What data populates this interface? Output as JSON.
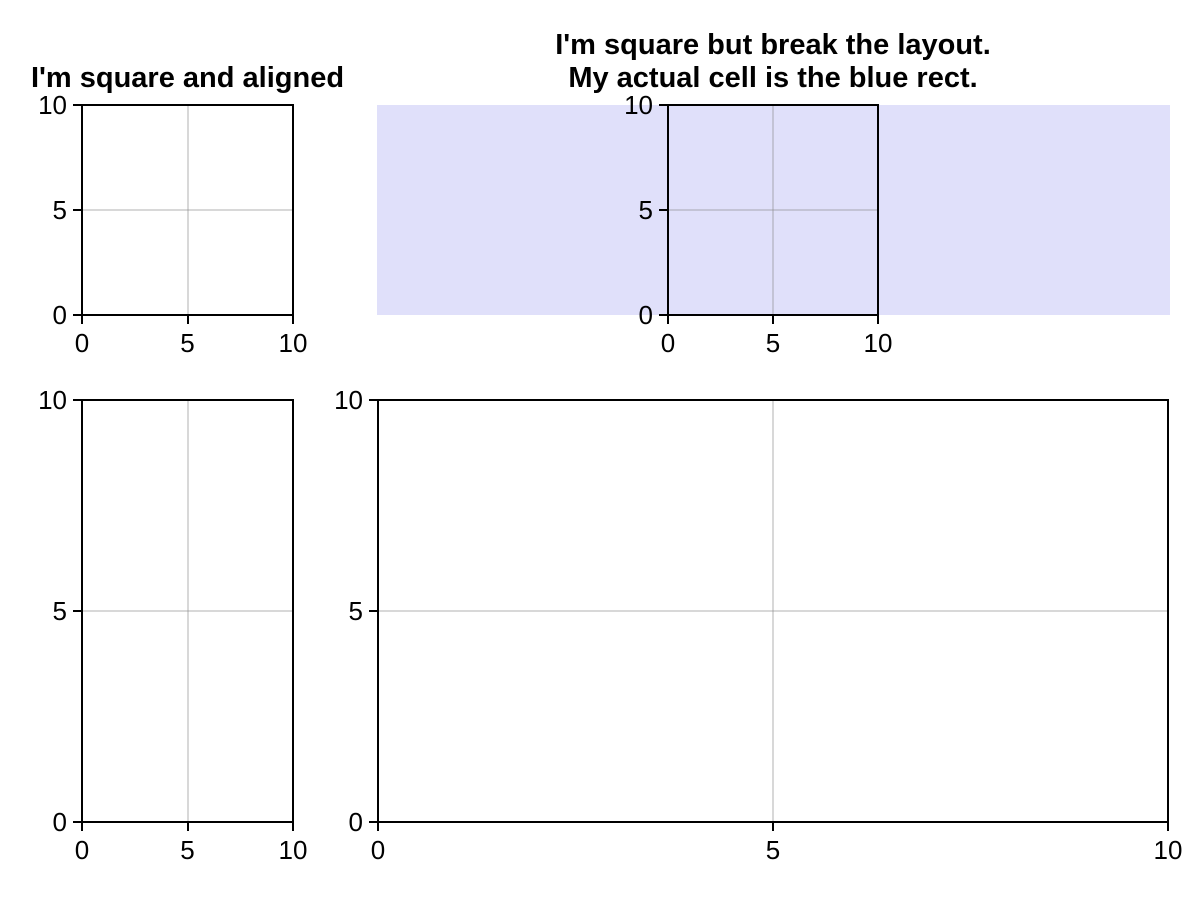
{
  "figure": {
    "background_color": "#ffffff",
    "axis_color": "#000000",
    "grid_color": "#8c8c8c",
    "cell_rect_color": "#e0e0fa"
  },
  "chart_data": [
    {
      "type": "line",
      "title": "I'm square and aligned",
      "title_lines": [
        "I'm square and aligned"
      ],
      "series": [],
      "xlim": [
        0,
        10
      ],
      "ylim": [
        0,
        10
      ],
      "xticks": [
        0,
        5,
        10
      ],
      "yticks": [
        0,
        5,
        10
      ],
      "xtick_labels": [
        "0",
        "5",
        "10"
      ],
      "ytick_labels": [
        "0",
        "5",
        "10"
      ],
      "grid": true,
      "aspect": "equal",
      "gridspec_cell_highlighted": false
    },
    {
      "type": "line",
      "title": "I'm square but break the layout.\nMy actual cell is the blue rect.",
      "title_lines": [
        "I'm square but break the layout.",
        "My actual cell is the blue rect."
      ],
      "series": [],
      "xlim": [
        0,
        10
      ],
      "ylim": [
        0,
        10
      ],
      "xticks": [
        0,
        5,
        10
      ],
      "yticks": [
        0,
        5,
        10
      ],
      "xtick_labels": [
        "0",
        "5",
        "10"
      ],
      "ytick_labels": [
        "0",
        "5",
        "10"
      ],
      "grid": true,
      "aspect": "equal",
      "gridspec_cell_highlighted": true
    },
    {
      "type": "line",
      "title": "",
      "title_lines": [],
      "series": [],
      "xlim": [
        0,
        10
      ],
      "ylim": [
        0,
        10
      ],
      "xticks": [
        0,
        5,
        10
      ],
      "yticks": [
        0,
        5,
        10
      ],
      "xtick_labels": [
        "0",
        "5",
        "10"
      ],
      "ytick_labels": [
        "0",
        "5",
        "10"
      ],
      "grid": true,
      "aspect": "auto",
      "gridspec_cell_highlighted": false
    },
    {
      "type": "line",
      "title": "",
      "title_lines": [],
      "series": [],
      "xlim": [
        0,
        10
      ],
      "ylim": [
        0,
        10
      ],
      "xticks": [
        0,
        5,
        10
      ],
      "yticks": [
        0,
        5,
        10
      ],
      "xtick_labels": [
        "0",
        "5",
        "10"
      ],
      "ytick_labels": [
        "0",
        "5",
        "10"
      ],
      "grid": true,
      "aspect": "auto",
      "gridspec_cell_highlighted": false
    }
  ]
}
